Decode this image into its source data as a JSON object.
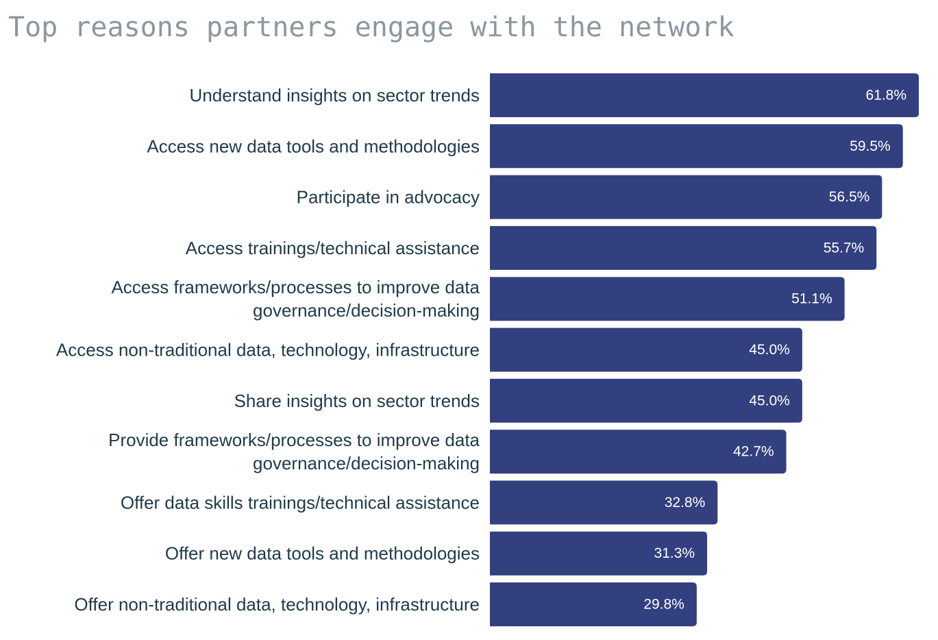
{
  "chart_data": {
    "type": "bar",
    "orientation": "horizontal",
    "title": "Top reasons partners engage with the network",
    "bar_color": "#33407f",
    "label_color": "#1f3a4b",
    "value_label_color": "#ffffff",
    "title_color": "#8c979e",
    "value_suffix": "%",
    "categories": [
      [
        "Understand insights on sector trends"
      ],
      [
        "Access new data tools and methodologies"
      ],
      [
        "Participate in advocacy"
      ],
      [
        "Access trainings/technical assistance"
      ],
      [
        "Access frameworks/processes to improve data",
        "governance/decision-making"
      ],
      [
        "Access non-traditional data, technology, infrastructure"
      ],
      [
        "Share insights on sector trends"
      ],
      [
        "Provide frameworks/processes to improve data",
        "governance/decision-making"
      ],
      [
        "Offer data skills trainings/technical assistance"
      ],
      [
        "Offer new data tools and methodologies"
      ],
      [
        "Offer non-traditional data, technology, infrastructure"
      ]
    ],
    "values": [
      61.8,
      59.5,
      56.5,
      55.7,
      51.1,
      45.0,
      45.0,
      42.7,
      32.8,
      31.3,
      29.8
    ],
    "value_labels": [
      "61.8%",
      "59.5%",
      "56.5%",
      "55.7%",
      "51.1%",
      "45.0%",
      "45.0%",
      "42.7%",
      "32.8%",
      "31.3%",
      "29.8%"
    ],
    "sorted": "descending",
    "gridlines": false,
    "axis_visible": false,
    "legend": "none"
  }
}
